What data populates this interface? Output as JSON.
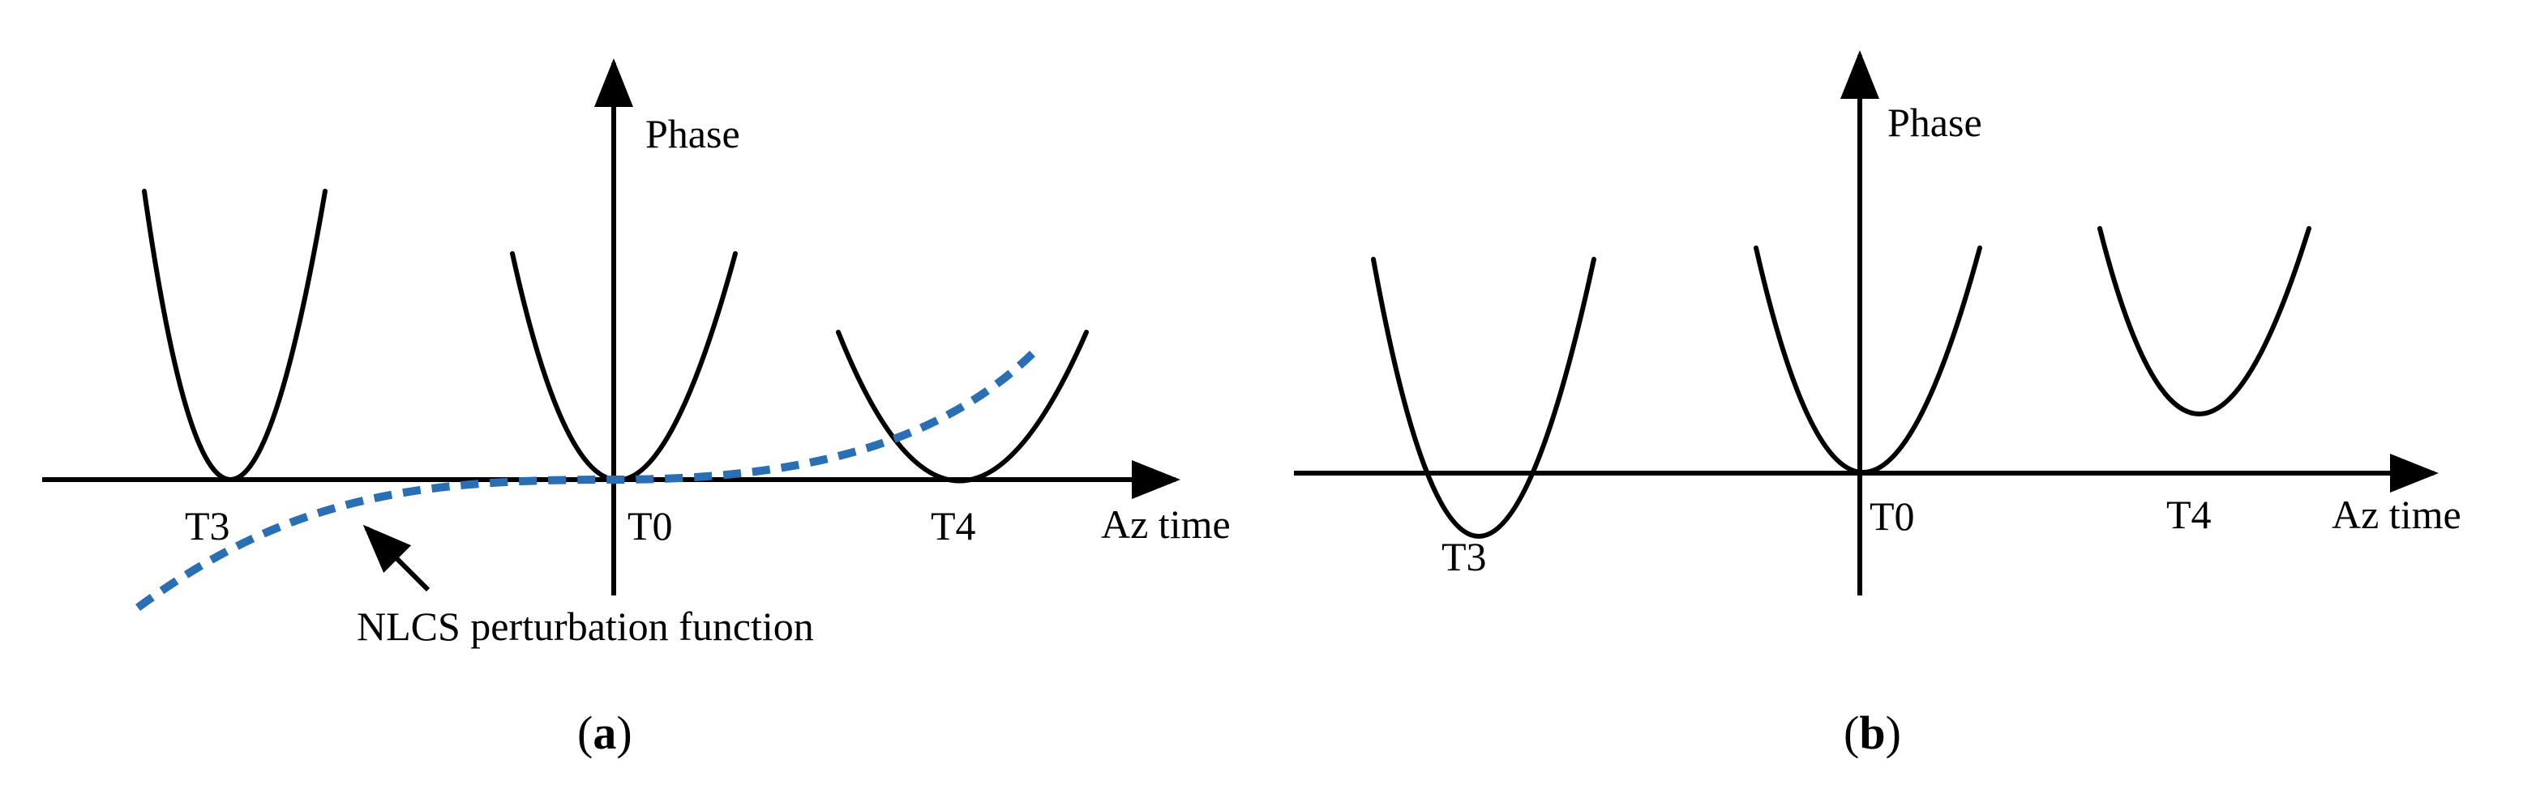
{
  "panel_a": {
    "axis_y_label": "Phase",
    "axis_x_label": "Az time",
    "ticks": [
      "T3",
      "T0",
      "T4"
    ],
    "annotation": "NLCS perturbation function",
    "caption_open": "(",
    "caption_letter": "a",
    "caption_close": ")",
    "curve_color": "#000000",
    "perturbation_color": "#2a6eb4"
  },
  "panel_b": {
    "axis_y_label": "Phase",
    "axis_x_label": "Az time",
    "ticks": [
      "T3",
      "T0",
      "T4"
    ],
    "caption_open": "(",
    "caption_letter": "b",
    "caption_close": ")",
    "curve_color": "#000000"
  }
}
